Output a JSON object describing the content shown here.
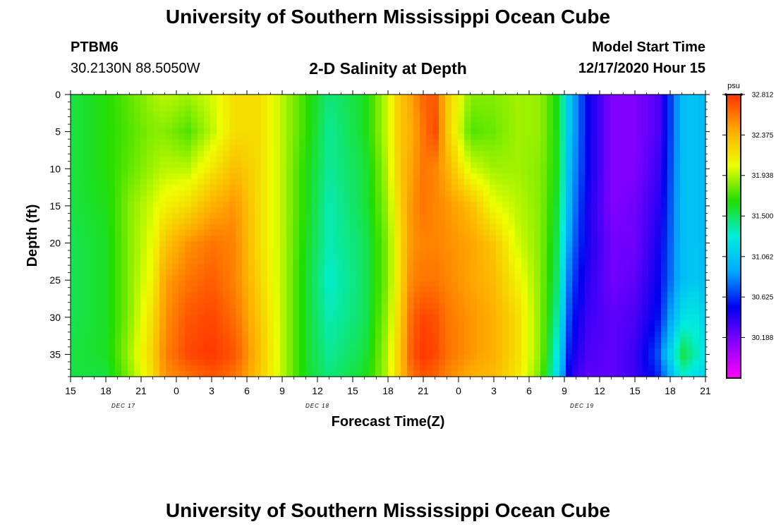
{
  "header": {
    "title_top": "University of Southern Mississippi Ocean Cube",
    "station_id": "PTBM6",
    "coords": "30.2130N 88.5050W",
    "plot_title": "2-D Salinity at Depth",
    "model_start_label": "Model Start Time",
    "model_start_value": "12/17/2020 Hour 15",
    "title_bottom": "University of Southern Mississippi Ocean Cube"
  },
  "colors": {
    "scale": [
      "#ff00ff",
      "#8800ff",
      "#0000ee",
      "#00aaff",
      "#00eedd",
      "#22dd00",
      "#eeff00",
      "#ffaa00",
      "#ff3300"
    ]
  },
  "chart_data": {
    "type": "heatmap",
    "title": "2-D Salinity at Depth",
    "xlabel": "Forecast Time(Z)",
    "ylabel": "Depth (ft)",
    "x_hours": [
      0,
      3,
      6,
      9,
      12,
      15,
      18,
      21,
      24,
      27,
      30,
      33,
      36,
      39,
      42,
      45,
      48,
      51,
      54
    ],
    "x_tick_labels": [
      "15",
      "18",
      "21",
      "0",
      "3",
      "6",
      "9",
      "12",
      "15",
      "18",
      "21",
      "0",
      "3",
      "6",
      "9",
      "12",
      "15",
      "18",
      "21"
    ],
    "date_labels": [
      {
        "text": "DEC 17",
        "hour": 4.5
      },
      {
        "text": "DEC 18",
        "hour": 21
      },
      {
        "text": "DEC 19",
        "hour": 43.5
      }
    ],
    "xlim": [
      0,
      54
    ],
    "y_ticks": [
      0,
      5,
      10,
      15,
      20,
      25,
      30,
      35
    ],
    "ylim": [
      0,
      38
    ],
    "colorbar": {
      "unit": "psu",
      "ticks": [
        32.812,
        32.375,
        31.938,
        31.5,
        31.062,
        30.625,
        30.188
      ],
      "tick_labels": [
        "32.812",
        "32.375",
        "31.938",
        "31.500",
        "31.062",
        "30.625",
        "30.188"
      ],
      "range": [
        29.75,
        32.812
      ]
    },
    "depths_ft": [
      0,
      5,
      10,
      15,
      20,
      25,
      30,
      35,
      38
    ],
    "columns": [
      {
        "hour": 0,
        "values": [
          31.55,
          31.55,
          31.55,
          31.55,
          31.52,
          31.52,
          31.52,
          31.55,
          31.55
        ]
      },
      {
        "hour": 3,
        "values": [
          31.65,
          31.65,
          31.65,
          31.62,
          31.6,
          31.6,
          31.6,
          31.6,
          31.55
        ]
      },
      {
        "hour": 5,
        "values": [
          31.78,
          31.75,
          31.78,
          31.85,
          31.85,
          31.85,
          31.85,
          31.9,
          31.85
        ]
      },
      {
        "hour": 7,
        "values": [
          31.9,
          31.85,
          31.9,
          32.0,
          32.05,
          32.1,
          32.2,
          32.25,
          32.2
        ]
      },
      {
        "hour": 8,
        "values": [
          31.95,
          31.85,
          31.95,
          32.1,
          32.3,
          32.45,
          32.5,
          32.55,
          32.5
        ]
      },
      {
        "hour": 10,
        "values": [
          31.9,
          31.75,
          31.95,
          32.2,
          32.5,
          32.6,
          32.7,
          32.75,
          32.6
        ]
      },
      {
        "hour": 12,
        "values": [
          32.0,
          31.95,
          32.15,
          32.4,
          32.6,
          32.68,
          32.75,
          32.8,
          32.7
        ]
      },
      {
        "hour": 14,
        "values": [
          32.2,
          32.2,
          32.35,
          32.5,
          32.55,
          32.55,
          32.62,
          32.7,
          32.6
        ]
      },
      {
        "hour": 16,
        "values": [
          32.2,
          32.2,
          32.2,
          32.2,
          32.2,
          32.25,
          32.3,
          32.35,
          32.3
        ]
      },
      {
        "hour": 18,
        "values": [
          31.95,
          31.95,
          31.95,
          31.95,
          31.95,
          31.95,
          31.95,
          31.95,
          31.95
        ]
      },
      {
        "hour": 20,
        "values": [
          31.7,
          31.7,
          31.65,
          31.65,
          31.62,
          31.6,
          31.6,
          31.6,
          31.6
        ]
      },
      {
        "hour": 22,
        "values": [
          31.45,
          31.4,
          31.4,
          31.35,
          31.35,
          31.3,
          31.35,
          31.4,
          31.45
        ]
      },
      {
        "hour": 25,
        "values": [
          31.6,
          31.6,
          31.55,
          31.55,
          31.5,
          31.5,
          31.5,
          31.55,
          31.6
        ]
      },
      {
        "hour": 27,
        "values": [
          32.0,
          32.0,
          31.95,
          31.9,
          31.85,
          31.85,
          31.9,
          31.95,
          31.95
        ]
      },
      {
        "hour": 28,
        "values": [
          32.3,
          32.3,
          32.3,
          32.25,
          32.2,
          32.2,
          32.25,
          32.3,
          32.3
        ]
      },
      {
        "hour": 29,
        "values": [
          32.45,
          32.4,
          32.45,
          32.5,
          32.5,
          32.55,
          32.65,
          32.7,
          32.6
        ]
      },
      {
        "hour": 30,
        "values": [
          32.65,
          32.6,
          32.6,
          32.6,
          32.55,
          32.6,
          32.75,
          32.8,
          32.7
        ]
      },
      {
        "hour": 31,
        "values": [
          32.7,
          32.75,
          32.55,
          32.55,
          32.55,
          32.6,
          32.72,
          32.75,
          32.65
        ]
      },
      {
        "hour": 32,
        "values": [
          32.3,
          32.3,
          32.4,
          32.5,
          32.52,
          32.55,
          32.6,
          32.62,
          32.55
        ]
      },
      {
        "hour": 34,
        "values": [
          31.85,
          31.75,
          32.0,
          32.35,
          32.45,
          32.45,
          32.5,
          32.5,
          32.4
        ]
      },
      {
        "hour": 36,
        "values": [
          31.85,
          31.8,
          31.9,
          32.05,
          32.3,
          32.35,
          32.4,
          32.4,
          32.35
        ]
      },
      {
        "hour": 38,
        "values": [
          31.9,
          31.9,
          31.9,
          31.95,
          32.0,
          32.1,
          32.2,
          32.2,
          32.15
        ]
      },
      {
        "hour": 40,
        "values": [
          31.88,
          31.88,
          31.85,
          31.85,
          31.85,
          31.85,
          31.85,
          31.85,
          31.8
        ]
      },
      {
        "hour": 41.5,
        "values": [
          31.6,
          31.6,
          31.6,
          31.55,
          31.5,
          31.45,
          31.35,
          31.2,
          31.1
        ]
      },
      {
        "hour": 42.5,
        "values": [
          31.0,
          31.0,
          30.95,
          30.9,
          30.8,
          30.7,
          30.6,
          30.5,
          30.4
        ]
      },
      {
        "hour": 44,
        "values": [
          30.5,
          30.5,
          30.5,
          30.45,
          30.45,
          30.4,
          30.35,
          30.3,
          30.25
        ]
      },
      {
        "hour": 46,
        "values": [
          30.15,
          30.15,
          30.15,
          30.15,
          30.2,
          30.2,
          30.25,
          30.25,
          30.25
        ]
      },
      {
        "hour": 48,
        "values": [
          30.15,
          30.15,
          30.15,
          30.2,
          30.2,
          30.25,
          30.3,
          30.35,
          30.35
        ]
      },
      {
        "hour": 50,
        "values": [
          30.3,
          30.3,
          30.35,
          30.4,
          30.45,
          30.5,
          30.55,
          30.7,
          30.6
        ]
      },
      {
        "hour": 52,
        "values": [
          31.0,
          31.0,
          31.0,
          31.0,
          31.0,
          31.0,
          31.2,
          31.55,
          31.3
        ]
      },
      {
        "hour": 53,
        "values": [
          31.05,
          31.05,
          31.05,
          31.05,
          31.05,
          31.08,
          31.25,
          31.4,
          31.2
        ]
      },
      {
        "hour": 54,
        "values": [
          31.0,
          31.0,
          31.0,
          31.0,
          31.0,
          31.0,
          31.1,
          31.2,
          31.1
        ]
      }
    ]
  }
}
